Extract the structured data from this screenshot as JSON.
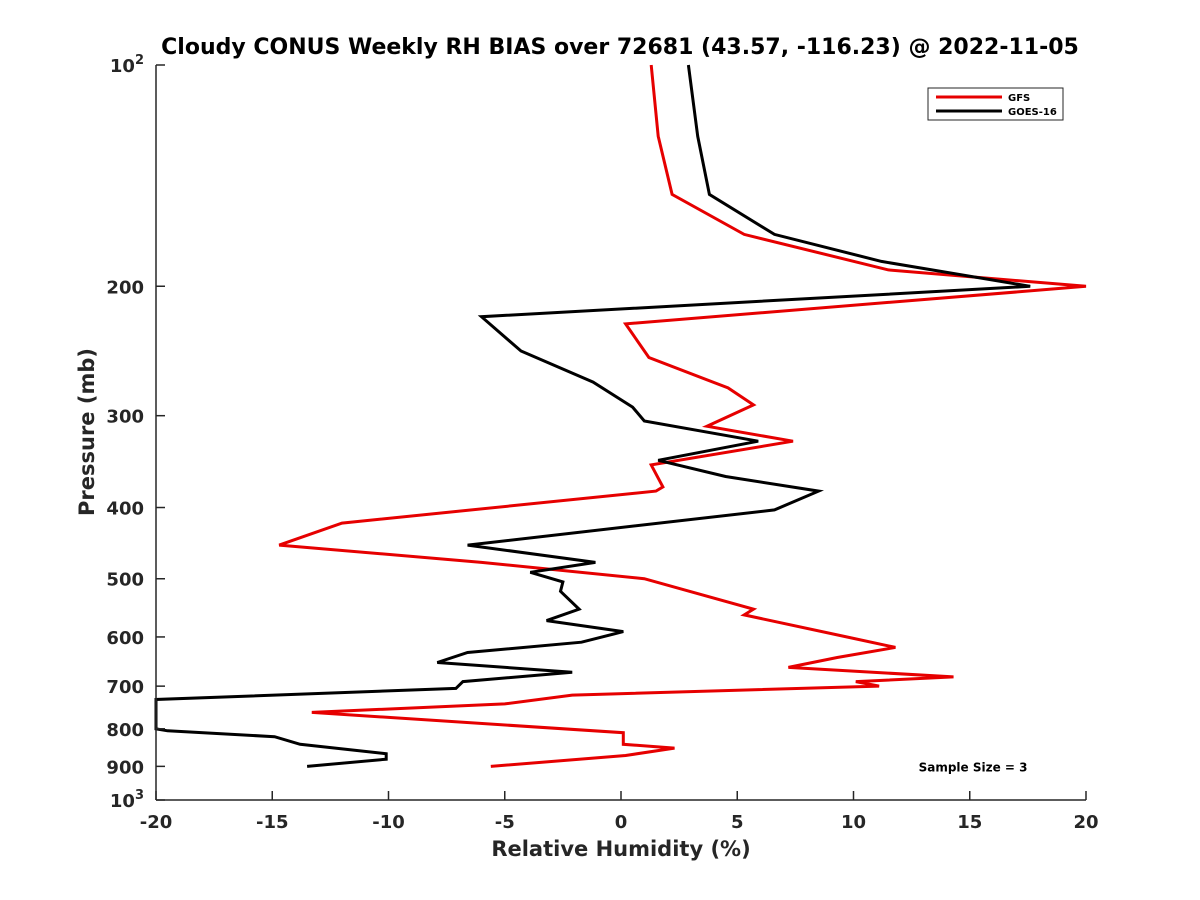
{
  "chart_data": {
    "type": "line",
    "title": "Cloudy CONUS Weekly RH BIAS over 72681 (43.57, -116.23) @ 2022-11-05",
    "xlabel": "Relative Humidity (%)",
    "ylabel": "Pressure (mb)",
    "xlim": [
      -20,
      20
    ],
    "ylim": [
      100,
      1000
    ],
    "y_scale": "log",
    "y_reversed": true,
    "grid": false,
    "legend_placement": "top-right",
    "x_ticks": [
      {
        "value": -20,
        "label": "-20"
      },
      {
        "value": -15,
        "label": "-15"
      },
      {
        "value": -10,
        "label": "-10"
      },
      {
        "value": -5,
        "label": "-5"
      },
      {
        "value": 0,
        "label": "0"
      },
      {
        "value": 5,
        "label": "5"
      },
      {
        "value": 10,
        "label": "10"
      },
      {
        "value": 15,
        "label": "15"
      },
      {
        "value": 20,
        "label": "20"
      }
    ],
    "y_ticks": [
      {
        "value": 100,
        "label": "10",
        "sup": "2"
      },
      {
        "value": 200,
        "label": "200",
        "sup": ""
      },
      {
        "value": 300,
        "label": "300",
        "sup": ""
      },
      {
        "value": 400,
        "label": "400",
        "sup": ""
      },
      {
        "value": 500,
        "label": "500",
        "sup": ""
      },
      {
        "value": 600,
        "label": "600",
        "sup": ""
      },
      {
        "value": 700,
        "label": "700",
        "sup": ""
      },
      {
        "value": 800,
        "label": "800",
        "sup": ""
      },
      {
        "value": 900,
        "label": "900",
        "sup": ""
      },
      {
        "value": 1000,
        "label": "10",
        "sup": "3"
      }
    ],
    "series": [
      {
        "name": "GFS",
        "color": "#e60000",
        "points": [
          {
            "x": 1.3,
            "y": 100
          },
          {
            "x": 1.6,
            "y": 125
          },
          {
            "x": 2.2,
            "y": 150
          },
          {
            "x": 5.3,
            "y": 170
          },
          {
            "x": 11.5,
            "y": 190
          },
          {
            "x": 20.0,
            "y": 200
          },
          {
            "x": 0.2,
            "y": 225
          },
          {
            "x": 1.2,
            "y": 250
          },
          {
            "x": 4.6,
            "y": 275
          },
          {
            "x": 5.7,
            "y": 290
          },
          {
            "x": 3.7,
            "y": 310
          },
          {
            "x": 7.4,
            "y": 325
          },
          {
            "x": 1.3,
            "y": 350
          },
          {
            "x": 1.8,
            "y": 375
          },
          {
            "x": 1.5,
            "y": 380
          },
          {
            "x": -12.0,
            "y": 420
          },
          {
            "x": -14.7,
            "y": 450
          },
          {
            "x": -6.0,
            "y": 475
          },
          {
            "x": 1.0,
            "y": 500
          },
          {
            "x": 5.7,
            "y": 550
          },
          {
            "x": 5.3,
            "y": 560
          },
          {
            "x": 9.7,
            "y": 600
          },
          {
            "x": 11.8,
            "y": 620
          },
          {
            "x": 9.3,
            "y": 640
          },
          {
            "x": 7.2,
            "y": 660
          },
          {
            "x": 14.3,
            "y": 680
          },
          {
            "x": 10.1,
            "y": 690
          },
          {
            "x": 11.1,
            "y": 700
          },
          {
            "x": -2.1,
            "y": 720
          },
          {
            "x": -5.0,
            "y": 740
          },
          {
            "x": -13.3,
            "y": 760
          },
          {
            "x": 0.1,
            "y": 810
          },
          {
            "x": 0.1,
            "y": 840
          },
          {
            "x": 2.3,
            "y": 850
          },
          {
            "x": 0.2,
            "y": 870
          },
          {
            "x": -5.6,
            "y": 900
          }
        ]
      },
      {
        "name": "GOES-16",
        "color": "#000000",
        "points": [
          {
            "x": 2.9,
            "y": 100
          },
          {
            "x": 3.3,
            "y": 125
          },
          {
            "x": 3.8,
            "y": 150
          },
          {
            "x": 6.6,
            "y": 170
          },
          {
            "x": 11.2,
            "y": 185
          },
          {
            "x": 17.6,
            "y": 200
          },
          {
            "x": -6.0,
            "y": 220
          },
          {
            "x": -4.3,
            "y": 245
          },
          {
            "x": -1.2,
            "y": 270
          },
          {
            "x": 0.5,
            "y": 292
          },
          {
            "x": 1.0,
            "y": 305
          },
          {
            "x": 5.9,
            "y": 325
          },
          {
            "x": 1.6,
            "y": 345
          },
          {
            "x": 4.5,
            "y": 363
          },
          {
            "x": 8.5,
            "y": 380
          },
          {
            "x": 6.6,
            "y": 403
          },
          {
            "x": -6.6,
            "y": 450
          },
          {
            "x": -1.1,
            "y": 475
          },
          {
            "x": -3.9,
            "y": 490
          },
          {
            "x": -2.5,
            "y": 505
          },
          {
            "x": -2.6,
            "y": 520
          },
          {
            "x": -1.8,
            "y": 550
          },
          {
            "x": -3.2,
            "y": 570
          },
          {
            "x": 0.1,
            "y": 590
          },
          {
            "x": -1.7,
            "y": 610
          },
          {
            "x": -6.6,
            "y": 630
          },
          {
            "x": -7.9,
            "y": 650
          },
          {
            "x": -2.1,
            "y": 670
          },
          {
            "x": -6.8,
            "y": 690
          },
          {
            "x": -7.1,
            "y": 705
          },
          {
            "x": -20.0,
            "y": 730
          },
          {
            "x": -20.0,
            "y": 800
          },
          {
            "x": -19.5,
            "y": 805
          },
          {
            "x": -14.9,
            "y": 820
          },
          {
            "x": -13.8,
            "y": 840
          },
          {
            "x": -10.1,
            "y": 865
          },
          {
            "x": -10.1,
            "y": 880
          },
          {
            "x": -13.5,
            "y": 900
          }
        ]
      }
    ],
    "annotations": [
      {
        "text": "Sample Size = 3",
        "x": 12.8,
        "y": 900
      }
    ]
  }
}
